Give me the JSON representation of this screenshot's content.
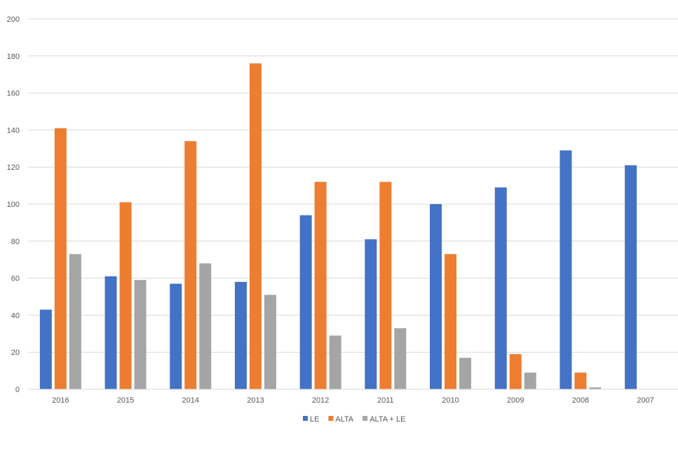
{
  "chart_data": {
    "type": "bar",
    "categories": [
      "2016",
      "2015",
      "2014",
      "2013",
      "2012",
      "2011",
      "2010",
      "2009",
      "2008",
      "2007"
    ],
    "series": [
      {
        "name": "LE",
        "color": "#4472C4",
        "values": [
          43,
          61,
          57,
          58,
          94,
          81,
          100,
          109,
          129,
          121
        ]
      },
      {
        "name": "ALTA",
        "color": "#ED7D31",
        "values": [
          141,
          101,
          134,
          176,
          112,
          112,
          73,
          19,
          9,
          0
        ]
      },
      {
        "name": "ALTA + LE",
        "color": "#A5A5A5",
        "values": [
          73,
          59,
          68,
          51,
          29,
          33,
          17,
          9,
          1,
          0
        ]
      }
    ],
    "ylim": [
      0,
      200
    ],
    "yticks": [
      "0",
      "20",
      "40",
      "60",
      "80",
      "100",
      "120",
      "140",
      "160",
      "180",
      "200"
    ],
    "grid": true,
    "legend": "bottom-center"
  }
}
